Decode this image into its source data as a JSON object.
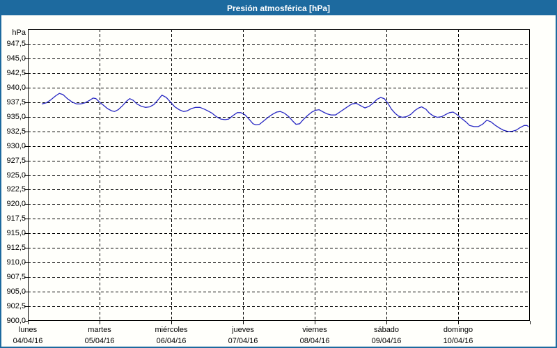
{
  "window": {
    "title": "Presión atmosférica [hPa]"
  },
  "colors": {
    "titlebar_bg": "#1d6a9f",
    "titlebar_text": "#ffffff",
    "window_border": "#1d6a9f",
    "window_bg": "#fffffb",
    "line_color": "#2727c3",
    "grid_color": "#000000",
    "axis_color": "#000000",
    "text_color": "#000000"
  },
  "chart_data": {
    "type": "line",
    "title": "Presión atmosférica [hPa]",
    "grid": "dashed",
    "legend": "none",
    "y_axis": {
      "unit_label": "hPa",
      "min": 900.0,
      "max": 950.0,
      "tick_step": 2.5,
      "tick_labels": [
        "947,5",
        "945,0",
        "942,5",
        "940,0",
        "937,5",
        "935,0",
        "932,5",
        "930,0",
        "927,5",
        "925,0",
        "922,5",
        "920,0",
        "917,5",
        "915,0",
        "912,5",
        "910,0",
        "907,5",
        "905,0",
        "902,5",
        "900,0"
      ]
    },
    "x_axis": {
      "span_days": 7,
      "tick_days": [
        {
          "name": "lunes",
          "date": "04/04/16"
        },
        {
          "name": "martes",
          "date": "05/04/16"
        },
        {
          "name": "miércoles",
          "date": "06/04/16"
        },
        {
          "name": "jueves",
          "date": "07/04/16"
        },
        {
          "name": "viernes",
          "date": "08/04/16"
        },
        {
          "name": "sábado",
          "date": "09/04/16"
        },
        {
          "name": "domingo",
          "date": "10/04/16"
        }
      ]
    },
    "series": [
      {
        "name": "Presión atmosférica",
        "unit": "hPa",
        "color": "#2727c3",
        "points_day_hpa": [
          [
            0.2,
            937.2
          ],
          [
            0.26,
            937.4
          ],
          [
            0.32,
            937.9
          ],
          [
            0.39,
            938.6
          ],
          [
            0.44,
            939.0
          ],
          [
            0.49,
            938.8
          ],
          [
            0.55,
            938.1
          ],
          [
            0.62,
            937.5
          ],
          [
            0.68,
            937.2
          ],
          [
            0.74,
            937.2
          ],
          [
            0.8,
            937.4
          ],
          [
            0.86,
            937.8
          ],
          [
            0.91,
            938.2
          ],
          [
            0.95,
            938.1
          ],
          [
            1.0,
            937.5
          ],
          [
            1.05,
            937.0
          ],
          [
            1.11,
            936.4
          ],
          [
            1.17,
            936.0
          ],
          [
            1.21,
            935.9
          ],
          [
            1.26,
            936.2
          ],
          [
            1.32,
            936.9
          ],
          [
            1.38,
            937.7
          ],
          [
            1.42,
            938.1
          ],
          [
            1.47,
            937.8
          ],
          [
            1.52,
            937.2
          ],
          [
            1.58,
            936.8
          ],
          [
            1.64,
            936.6
          ],
          [
            1.7,
            936.7
          ],
          [
            1.76,
            937.1
          ],
          [
            1.81,
            937.8
          ],
          [
            1.87,
            938.7
          ],
          [
            1.93,
            938.3
          ],
          [
            1.99,
            937.5
          ],
          [
            2.05,
            936.7
          ],
          [
            2.11,
            936.2
          ],
          [
            2.17,
            935.9
          ],
          [
            2.22,
            936.0
          ],
          [
            2.28,
            936.4
          ],
          [
            2.34,
            936.6
          ],
          [
            2.4,
            936.6
          ],
          [
            2.46,
            936.3
          ],
          [
            2.51,
            936.0
          ],
          [
            2.57,
            935.6
          ],
          [
            2.63,
            935.0
          ],
          [
            2.69,
            934.6
          ],
          [
            2.75,
            934.5
          ],
          [
            2.8,
            934.6
          ],
          [
            2.86,
            935.2
          ],
          [
            2.92,
            935.7
          ],
          [
            2.97,
            935.7
          ],
          [
            3.03,
            935.3
          ],
          [
            3.09,
            934.5
          ],
          [
            3.14,
            933.8
          ],
          [
            3.18,
            933.6
          ],
          [
            3.23,
            933.7
          ],
          [
            3.29,
            934.3
          ],
          [
            3.35,
            934.9
          ],
          [
            3.41,
            935.4
          ],
          [
            3.47,
            935.8
          ],
          [
            3.52,
            935.9
          ],
          [
            3.58,
            935.6
          ],
          [
            3.64,
            935.0
          ],
          [
            3.69,
            934.3
          ],
          [
            3.74,
            933.7
          ],
          [
            3.79,
            933.8
          ],
          [
            3.84,
            934.5
          ],
          [
            3.9,
            935.2
          ],
          [
            3.96,
            935.8
          ],
          [
            4.01,
            936.1
          ],
          [
            4.06,
            936.2
          ],
          [
            4.12,
            935.8
          ],
          [
            4.17,
            935.5
          ],
          [
            4.23,
            935.3
          ],
          [
            4.29,
            935.3
          ],
          [
            4.35,
            935.8
          ],
          [
            4.41,
            936.3
          ],
          [
            4.47,
            936.8
          ],
          [
            4.52,
            937.2
          ],
          [
            4.58,
            937.3
          ],
          [
            4.64,
            936.9
          ],
          [
            4.7,
            936.5
          ],
          [
            4.76,
            936.8
          ],
          [
            4.82,
            937.4
          ],
          [
            4.87,
            938.0
          ],
          [
            4.92,
            938.3
          ],
          [
            4.97,
            938.1
          ],
          [
            5.02,
            937.3
          ],
          [
            5.07,
            936.3
          ],
          [
            5.12,
            935.6
          ],
          [
            5.17,
            935.1
          ],
          [
            5.22,
            934.9
          ],
          [
            5.28,
            935.0
          ],
          [
            5.34,
            935.4
          ],
          [
            5.4,
            936.1
          ],
          [
            5.45,
            936.5
          ],
          [
            5.49,
            936.7
          ],
          [
            5.55,
            936.3
          ],
          [
            5.6,
            935.6
          ],
          [
            5.66,
            935.1
          ],
          [
            5.71,
            934.9
          ],
          [
            5.77,
            935.0
          ],
          [
            5.83,
            935.4
          ],
          [
            5.88,
            935.7
          ],
          [
            5.93,
            935.8
          ],
          [
            5.98,
            935.4
          ],
          [
            6.0,
            935.2
          ],
          [
            6.05,
            934.7
          ],
          [
            6.11,
            934.1
          ],
          [
            6.16,
            933.5
          ],
          [
            6.22,
            933.3
          ],
          [
            6.28,
            933.3
          ],
          [
            6.34,
            933.7
          ],
          [
            6.4,
            934.4
          ],
          [
            6.46,
            934.1
          ],
          [
            6.51,
            933.6
          ],
          [
            6.57,
            933.1
          ],
          [
            6.63,
            932.7
          ],
          [
            6.69,
            932.5
          ],
          [
            6.75,
            932.5
          ],
          [
            6.81,
            932.7
          ],
          [
            6.86,
            933.1
          ],
          [
            6.92,
            933.5
          ],
          [
            6.96,
            933.5
          ],
          [
            6.98,
            933.3
          ]
        ]
      }
    ]
  }
}
